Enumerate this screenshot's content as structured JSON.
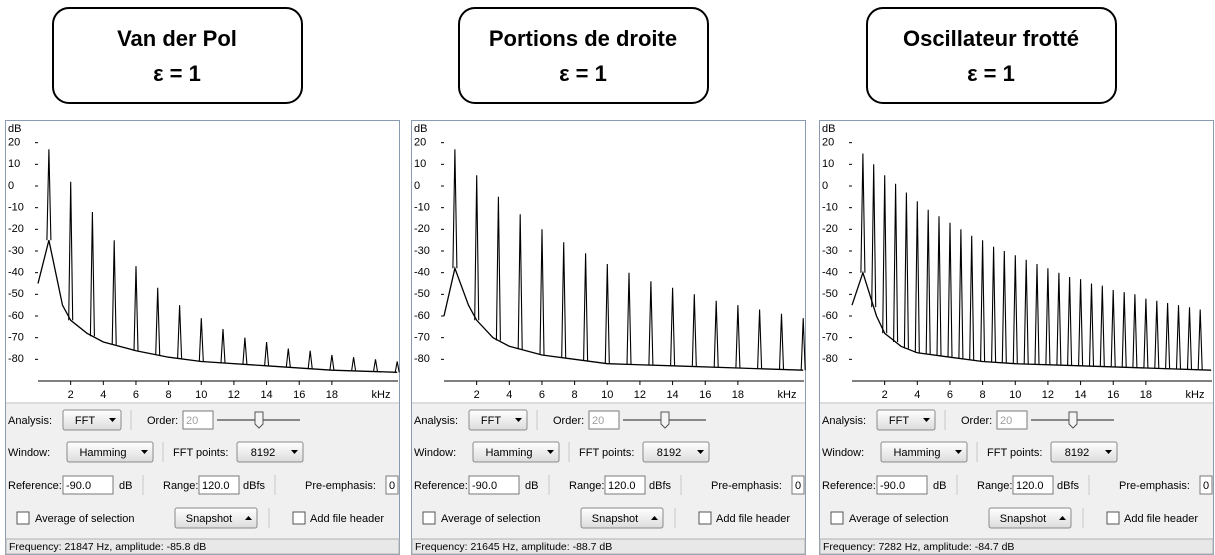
{
  "panels": [
    {
      "title": "Van der Pol",
      "subtitle": "ε = 1",
      "spectrum": {
        "type": "line",
        "y_label": "dB",
        "x_unit": "kHz",
        "color": "#000000",
        "xlim": [
          0,
          22.05
        ],
        "ylim": [
          -90,
          30
        ],
        "yticks": [
          20,
          10,
          0,
          -10,
          -20,
          -30,
          -40,
          -50,
          -60,
          -70,
          -80
        ],
        "xticks": [
          2,
          4,
          6,
          8,
          10,
          12,
          14,
          16,
          18
        ],
        "peaks": {
          "x": [
            0.67,
            2,
            3.33,
            4.67,
            6,
            7.33,
            8.67,
            10,
            11.33,
            12.67,
            14,
            15.33,
            16.67,
            18,
            19.33,
            20.67,
            22
          ],
          "values": [
            17,
            2,
            -12,
            -25,
            -37,
            -47,
            -55,
            -61,
            -66,
            -70,
            -72,
            -75,
            -76,
            -78,
            -79,
            -80,
            -81
          ]
        },
        "floor": {
          "x": [
            0,
            0.67,
            1.5,
            2,
            3,
            4,
            6,
            8,
            10,
            14,
            18,
            22
          ],
          "values": [
            -45,
            -25,
            -55,
            -62,
            -68,
            -72,
            -76,
            -79,
            -81,
            -83,
            -85,
            -86
          ]
        }
      },
      "status": "Frequency: 21847 Hz, amplitude: -85.8 dB"
    },
    {
      "title": "Portions de droite",
      "subtitle": "ε = 1",
      "spectrum": {
        "type": "line",
        "y_label": "dB",
        "x_unit": "kHz",
        "color": "#000000",
        "xlim": [
          0,
          22.05
        ],
        "ylim": [
          -90,
          30
        ],
        "yticks": [
          20,
          10,
          0,
          -10,
          -20,
          -30,
          -40,
          -50,
          -60,
          -70,
          -80
        ],
        "xticks": [
          2,
          4,
          6,
          8,
          10,
          12,
          14,
          16,
          18
        ],
        "peaks": {
          "x": [
            0.67,
            2,
            3.33,
            4.67,
            6,
            7.33,
            8.67,
            10,
            11.33,
            12.67,
            14,
            15.33,
            16.67,
            18,
            19.33,
            20.67,
            22
          ],
          "values": [
            17,
            5,
            -5,
            -13,
            -20,
            -26,
            -31,
            -36,
            -40,
            -44,
            -47,
            -50,
            -53,
            -55,
            -57,
            -59,
            -61
          ]
        },
        "floor": {
          "x": [
            0,
            0.67,
            1.5,
            2,
            3,
            4,
            6,
            8,
            10,
            14,
            18,
            22
          ],
          "values": [
            -60,
            -38,
            -55,
            -62,
            -70,
            -74,
            -78,
            -80,
            -82,
            -83,
            -84,
            -85
          ]
        }
      },
      "status": "Frequency: 21645 Hz, amplitude: -88.7 dB"
    },
    {
      "title": "Oscillateur frotté",
      "subtitle": "ε = 1",
      "spectrum": {
        "type": "line",
        "y_label": "dB",
        "x_unit": "kHz",
        "color": "#000000",
        "xlim": [
          0,
          22.05
        ],
        "ylim": [
          -90,
          30
        ],
        "yticks": [
          20,
          10,
          0,
          -10,
          -20,
          -30,
          -40,
          -50,
          -60,
          -70,
          -80
        ],
        "xticks": [
          2,
          4,
          6,
          8,
          10,
          12,
          14,
          16,
          18
        ],
        "peaks": {
          "x": [
            0.67,
            1.33,
            2,
            2.67,
            3.33,
            4,
            4.67,
            5.33,
            6,
            6.67,
            7.33,
            8,
            8.67,
            9.33,
            10,
            10.67,
            11.33,
            12,
            12.67,
            13.33,
            14,
            14.67,
            15.33,
            16,
            16.67,
            17.33,
            18,
            18.67,
            19.33,
            20,
            20.67,
            21.33
          ],
          "values": [
            15,
            10,
            5,
            1,
            -3,
            -7,
            -11,
            -14,
            -17,
            -20,
            -23,
            -25,
            -28,
            -30,
            -32,
            -34,
            -36,
            -38,
            -40,
            -42,
            -43,
            -45,
            -46,
            -48,
            -49,
            -50,
            -52,
            -53,
            -54,
            -55,
            -56,
            -57
          ]
        },
        "floor": {
          "x": [
            0,
            0.67,
            1.5,
            2,
            3,
            4,
            6,
            8,
            10,
            14,
            18,
            22
          ],
          "values": [
            -55,
            -40,
            -60,
            -68,
            -74,
            -77,
            -79,
            -81,
            -82,
            -83,
            -84,
            -85
          ]
        }
      },
      "status": "Frequency: 7282 Hz, amplitude: -84.7 dB"
    }
  ],
  "controls": {
    "analysis_label": "Analysis:",
    "analysis": "FFT",
    "order_label": "Order:",
    "order": "20",
    "window_label": "Window:",
    "window": "Hamming",
    "fft_points_label": "FFT points:",
    "fft_points": "8192",
    "reference_label": "Reference:",
    "reference": "-90.0",
    "reference_unit": "dB",
    "range_label": "Range:",
    "range": "120.0",
    "range_unit": "dBfs",
    "pre_emphasis_label": "Pre-emphasis:",
    "pre_emphasis": "0",
    "average": "Average of selection",
    "snapshot": "Snapshot",
    "file_header": "Add file header"
  }
}
